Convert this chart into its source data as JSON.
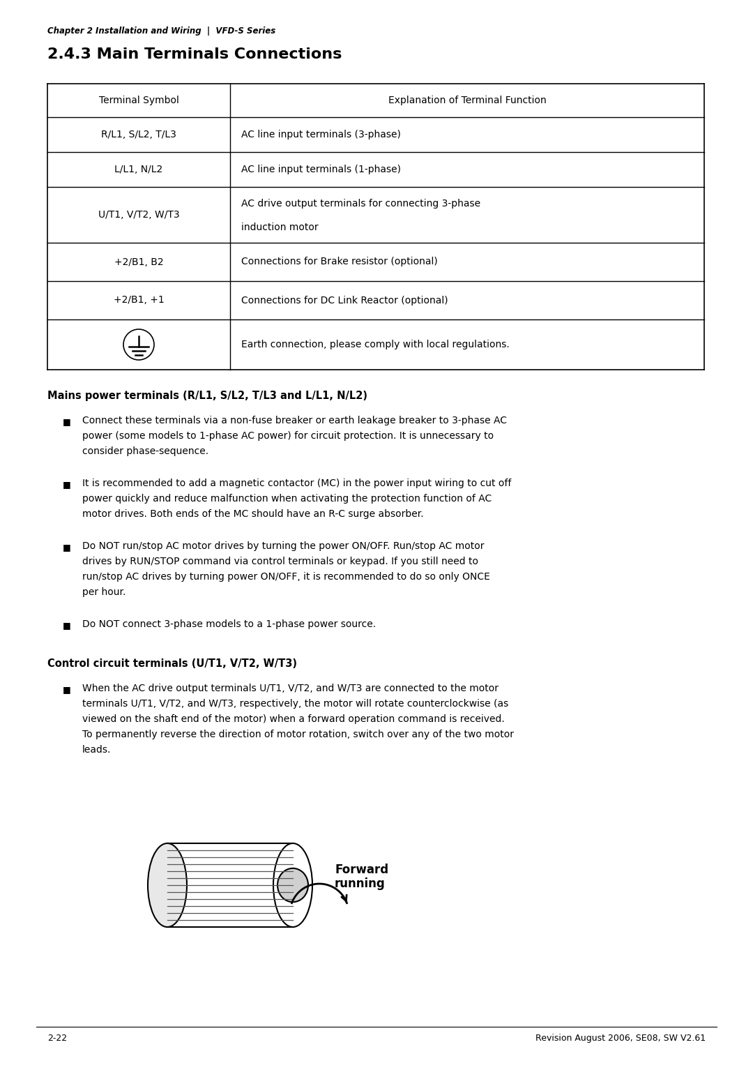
{
  "bg_color": "#ffffff",
  "text_color": "#000000",
  "header_italic": "Chapter 2 Installation and Wiring  |  VFD-S Series",
  "title": "2.4.3 Main Terminals Connections",
  "table": {
    "col1_header": "Terminal Symbol",
    "col2_header": "Explanation of Terminal Function",
    "rows": [
      [
        "R/L1, S/L2, T/L3",
        "AC line input terminals (3-phase)"
      ],
      [
        "L/L1, N/L2",
        "AC line input terminals (1-phase)"
      ],
      [
        "U/T1, V/T2, W/T3",
        "AC drive output terminals for connecting 3-phase\ninduction motor"
      ],
      [
        "+2/B1, B2",
        "Connections for Brake resistor (optional)"
      ],
      [
        "+2/B1, +1",
        "Connections for DC Link Reactor (optional)"
      ],
      [
        "EARTH_SYMBOL",
        "Earth connection, please comply with local regulations."
      ]
    ]
  },
  "section1_title": "Mains power terminals (R/L1, S/L2, T/L3 and L/L1, N/L2)",
  "section1_bullets": [
    "Connect these terminals via a non-fuse breaker or earth leakage breaker to 3-phase AC\npower (some models to 1-phase AC power) for circuit protection. It is unnecessary to\nconsider phase-sequence.",
    "It is recommended to add a magnetic contactor (MC) in the power input wiring to cut off\npower quickly and reduce malfunction when activating the protection function of AC\nmotor drives. Both ends of the MC should have an R-C surge absorber.",
    "Do NOT run/stop AC motor drives by turning the power ON/OFF. Run/stop AC motor\ndrives by RUN/STOP command via control terminals or keypad. If you still need to\nrun/stop AC drives by turning power ON/OFF, it is recommended to do so only ONCE\nper hour.",
    "Do NOT connect 3-phase models to a 1-phase power source."
  ],
  "section2_title": "Control circuit terminals (U/T1, V/T2, W/T3)",
  "section2_bullets": [
    "When the AC drive output terminals U/T1, V/T2, and W/T3 are connected to the motor\nterminals U/T1, V/T2, and W/T3, respectively, the motor will rotate counterclockwise (as\nviewed on the shaft end of the motor) when a forward operation command is received.\nTo permanently reverse the direction of motor rotation, switch over any of the two motor\nleads."
  ],
  "footer_left": "2-22",
  "footer_right": "Revision August 2006, SE08, SW V2.61",
  "forward_running_label": "Forward\nrunning"
}
